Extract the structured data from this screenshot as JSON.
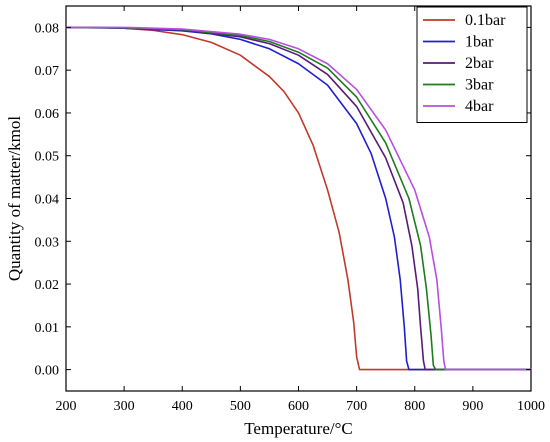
{
  "chart_data": {
    "type": "line",
    "xlabel": "Temperature/°C",
    "ylabel": "Quantity of matter/kmol",
    "xlim": [
      200,
      1000
    ],
    "ylim": [
      -0.005,
      0.085
    ],
    "xticks": [
      200,
      300,
      400,
      500,
      600,
      700,
      800,
      900,
      1000
    ],
    "yticks": [
      0.0,
      0.01,
      0.02,
      0.03,
      0.04,
      0.05,
      0.06,
      0.07,
      0.08
    ],
    "ytick_labels": [
      "0.00",
      "0.01",
      "0.02",
      "0.03",
      "0.04",
      "0.05",
      "0.06",
      "0.07",
      "0.08"
    ],
    "grid": false,
    "legend_position": "top-right",
    "series": [
      {
        "name": "0.1bar",
        "color": "#c0392b",
        "points": [
          [
            200,
            0.08
          ],
          [
            250,
            0.08
          ],
          [
            300,
            0.0798
          ],
          [
            350,
            0.0793
          ],
          [
            400,
            0.0783
          ],
          [
            450,
            0.0765
          ],
          [
            500,
            0.0735
          ],
          [
            550,
            0.0685
          ],
          [
            575,
            0.065
          ],
          [
            600,
            0.06
          ],
          [
            625,
            0.0525
          ],
          [
            650,
            0.042
          ],
          [
            670,
            0.032
          ],
          [
            685,
            0.021
          ],
          [
            695,
            0.011
          ],
          [
            700,
            0.003
          ],
          [
            705,
            0.0
          ],
          [
            750,
            0.0
          ],
          [
            1000,
            0.0
          ]
        ]
      },
      {
        "name": "1bar",
        "color": "#1f1fcf",
        "points": [
          [
            200,
            0.08
          ],
          [
            300,
            0.0798
          ],
          [
            400,
            0.0792
          ],
          [
            450,
            0.0785
          ],
          [
            500,
            0.0772
          ],
          [
            550,
            0.075
          ],
          [
            600,
            0.0715
          ],
          [
            650,
            0.0665
          ],
          [
            700,
            0.0575
          ],
          [
            725,
            0.0505
          ],
          [
            750,
            0.04
          ],
          [
            765,
            0.031
          ],
          [
            775,
            0.021
          ],
          [
            782,
            0.01
          ],
          [
            786,
            0.002
          ],
          [
            790,
            0.0
          ],
          [
            1000,
            0.0
          ]
        ]
      },
      {
        "name": "2bar",
        "color": "#5a1a78",
        "points": [
          [
            200,
            0.08
          ],
          [
            300,
            0.0799
          ],
          [
            400,
            0.0794
          ],
          [
            500,
            0.0778
          ],
          [
            550,
            0.0762
          ],
          [
            600,
            0.0735
          ],
          [
            650,
            0.069
          ],
          [
            700,
            0.0615
          ],
          [
            750,
            0.0495
          ],
          [
            780,
            0.039
          ],
          [
            795,
            0.029
          ],
          [
            805,
            0.019
          ],
          [
            810,
            0.01
          ],
          [
            815,
            0.002
          ],
          [
            818,
            0.0
          ],
          [
            1000,
            0.0
          ]
        ]
      },
      {
        "name": "3bar",
        "color": "#1e7b1e",
        "points": [
          [
            200,
            0.08
          ],
          [
            300,
            0.0799
          ],
          [
            400,
            0.0795
          ],
          [
            500,
            0.0781
          ],
          [
            550,
            0.0767
          ],
          [
            600,
            0.0742
          ],
          [
            650,
            0.0705
          ],
          [
            700,
            0.0637
          ],
          [
            750,
            0.053
          ],
          [
            790,
            0.04
          ],
          [
            810,
            0.029
          ],
          [
            820,
            0.019
          ],
          [
            828,
            0.008
          ],
          [
            832,
            0.001
          ],
          [
            836,
            0.0
          ],
          [
            1000,
            0.0
          ]
        ]
      },
      {
        "name": "4bar",
        "color": "#b84ee0",
        "points": [
          [
            200,
            0.08
          ],
          [
            300,
            0.08
          ],
          [
            400,
            0.0796
          ],
          [
            500,
            0.0784
          ],
          [
            550,
            0.0772
          ],
          [
            600,
            0.075
          ],
          [
            650,
            0.0715
          ],
          [
            700,
            0.0655
          ],
          [
            750,
            0.056
          ],
          [
            800,
            0.042
          ],
          [
            825,
            0.031
          ],
          [
            838,
            0.021
          ],
          [
            846,
            0.009
          ],
          [
            850,
            0.002
          ],
          [
            853,
            0.0
          ],
          [
            1000,
            0.0
          ]
        ]
      }
    ]
  }
}
